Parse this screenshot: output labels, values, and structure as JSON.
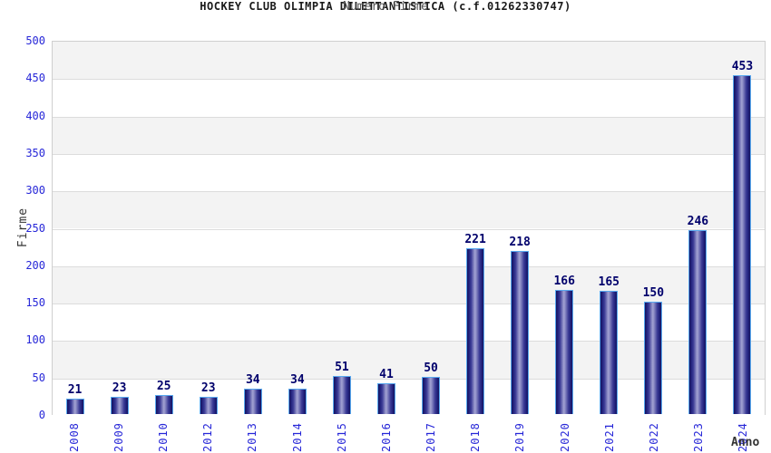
{
  "title": "HOCKEY CLUB OLIMPIA DILETTANTISTICA (c.f.01262330747)",
  "subtitle": "Numero Firme",
  "chart_data": {
    "type": "bar",
    "categories": [
      "2008",
      "2009",
      "2010",
      "2012",
      "2013",
      "2014",
      "2015",
      "2016",
      "2017",
      "2018",
      "2019",
      "2020",
      "2021",
      "2022",
      "2023",
      "2024"
    ],
    "values": [
      21,
      23,
      25,
      23,
      34,
      34,
      51,
      41,
      50,
      221,
      218,
      166,
      165,
      150,
      246,
      453
    ],
    "title": "HOCKEY CLUB OLIMPIA DILETTANTISTICA (c.f.01262330747)",
    "subtitle": "Numero Firme",
    "xlabel": "Anno",
    "ylabel": "Firme",
    "ylim": [
      0,
      500
    ],
    "yticks": [
      0,
      50,
      100,
      150,
      200,
      250,
      300,
      350,
      400,
      450,
      500
    ],
    "grid": "horizontal-bands",
    "legend": "none"
  },
  "colors": {
    "bar_border": "#58a8ef",
    "bar_dark": "#14145f",
    "bar_light": "#a2a2d2",
    "value_label": "#00006b",
    "axis_text": "#2727d8",
    "title_text": "#1a1a1a",
    "subtitle_text": "#555555",
    "axis_title_text": "#333333",
    "band_gray": "#f3f3f3",
    "gridline": "#dcdcdc",
    "plot_border": "#cfcfcf"
  }
}
